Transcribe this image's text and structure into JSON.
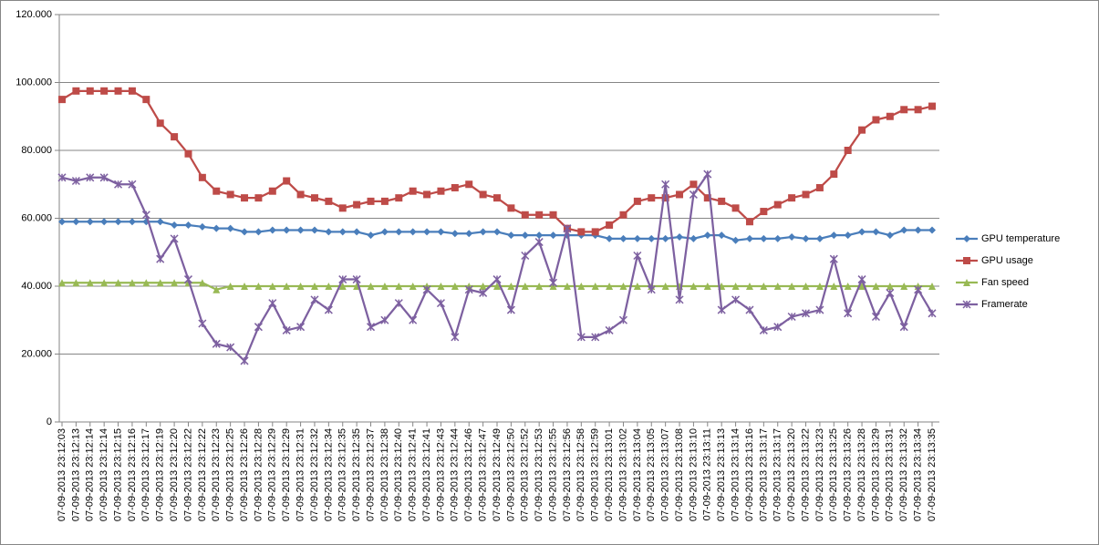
{
  "chart_data": {
    "type": "line",
    "categories": [
      "07-09-2013 23:12:03",
      "07-09-2013 23:12:13",
      "07-09-2013 23:12:14",
      "07-09-2013 23:12:14",
      "07-09-2013 23:12:15",
      "07-09-2013 23:12:16",
      "07-09-2013 23:12:17",
      "07-09-2013 23:12:19",
      "07-09-2013 23:12:20",
      "07-09-2013 23:12:22",
      "07-09-2013 23:12:22",
      "07-09-2013 23:12:23",
      "07-09-2013 23:12:25",
      "07-09-2013 23:12:26",
      "07-09-2013 23:12:28",
      "07-09-2013 23:12:29",
      "07-09-2013 23:12:29",
      "07-09-2013 23:12:31",
      "07-09-2013 23:12:32",
      "07-09-2013 23:12:34",
      "07-09-2013 23:12:35",
      "07-09-2013 23:12:35",
      "07-09-2013 23:12:37",
      "07-09-2013 23:12:38",
      "07-09-2013 23:12:40",
      "07-09-2013 23:12:41",
      "07-09-2013 23:12:41",
      "07-09-2013 23:12:43",
      "07-09-2013 23:12:44",
      "07-09-2013 23:12:46",
      "07-09-2013 23:12:47",
      "07-09-2013 23:12:49",
      "07-09-2013 23:12:50",
      "07-09-2013 23:12:52",
      "07-09-2013 23:12:53",
      "07-09-2013 23:12:55",
      "07-09-2013 23:12:56",
      "07-09-2013 23:12:58",
      "07-09-2013 23:12:59",
      "07-09-2013 23:13:01",
      "07-09-2013 23:13:02",
      "07-09-2013 23:13:04",
      "07-09-2013 23:13:05",
      "07-09-2013 23:13:07",
      "07-09-2013 23:13:08",
      "07-09-2013 23:13:10",
      "07-09-2013 23:13:11",
      "07-09-2013 23:13:13",
      "07-09-2013 23:13:14",
      "07-09-2013 23:13:16",
      "07-09-2013 23:13:17",
      "07-09-2013 23:13:17",
      "07-09-2013 23:13:20",
      "07-09-2013 23:13:22",
      "07-09-2013 23:13:23",
      "07-09-2013 23:13:25",
      "07-09-2013 23:13:26",
      "07-09-2013 23:13:28",
      "07-09-2013 23:13:29",
      "07-09-2013 23:13:31",
      "07-09-2013 23:13:32",
      "07-09-2013 23:13:34",
      "07-09-2013 23:13:35"
    ],
    "series": [
      {
        "name": "GPU temperature",
        "color": "#4a7ebb",
        "marker": "diamond",
        "values": [
          59,
          59,
          59,
          59,
          59,
          59,
          59,
          59,
          58,
          58,
          57.5,
          57,
          57,
          56,
          56,
          56.5,
          56.5,
          56.5,
          56.5,
          56,
          56,
          56,
          55,
          56,
          56,
          56,
          56,
          56,
          55.5,
          55.5,
          56,
          56,
          55,
          55,
          55,
          55,
          55,
          55,
          55,
          54,
          54,
          54,
          54,
          54,
          54.5,
          54,
          55,
          55,
          53.5,
          54,
          54,
          54,
          54.5,
          54,
          54,
          55,
          55,
          56,
          56,
          55,
          56.5,
          56.5,
          56.5
        ]
      },
      {
        "name": "GPU usage",
        "color": "#be4b48",
        "marker": "square",
        "values": [
          95,
          97.5,
          97.5,
          97.5,
          97.5,
          97.5,
          95,
          88,
          84,
          79,
          72,
          68,
          67,
          66,
          66,
          68,
          71,
          67,
          66,
          65,
          63,
          64,
          65,
          65,
          66,
          68,
          67,
          68,
          69,
          70,
          67,
          66,
          63,
          61,
          61,
          61,
          57,
          56,
          56,
          58,
          61,
          65,
          66,
          66,
          67,
          70,
          66,
          65,
          63,
          59,
          62,
          64,
          66,
          67,
          69,
          73,
          80,
          86,
          89,
          90,
          92,
          92,
          93
        ]
      },
      {
        "name": "Fan speed",
        "color": "#98b954",
        "marker": "triangle",
        "values": [
          41,
          41,
          41,
          41,
          41,
          41,
          41,
          41,
          41,
          41,
          41,
          39,
          40,
          40,
          40,
          40,
          40,
          40,
          40,
          40,
          40,
          40,
          40,
          40,
          40,
          40,
          40,
          40,
          40,
          40,
          40,
          40,
          40,
          40,
          40,
          40,
          40,
          40,
          40,
          40,
          40,
          40,
          40,
          40,
          40,
          40,
          40,
          40,
          40,
          40,
          40,
          40,
          40,
          40,
          40,
          40,
          40,
          40,
          40,
          40,
          40,
          40,
          40
        ]
      },
      {
        "name": "Framerate",
        "color": "#7d60a0",
        "marker": "x",
        "values": [
          72,
          71,
          72,
          72,
          70,
          70,
          61,
          48,
          54,
          42,
          29,
          23,
          22,
          18,
          28,
          35,
          27,
          28,
          36,
          33,
          42,
          42,
          28,
          30,
          35,
          30,
          39,
          35,
          25,
          39,
          38,
          42,
          33,
          49,
          53,
          41,
          57,
          25,
          25,
          27,
          30,
          49,
          39,
          70,
          36,
          67,
          73,
          33,
          36,
          33,
          27,
          28,
          31,
          32,
          33,
          48,
          32,
          42,
          31,
          38,
          28,
          39,
          32
        ]
      }
    ],
    "ylim": [
      0,
      120
    ],
    "yticks": [
      0,
      {
        "value": 20,
        "label": "20.000"
      },
      {
        "value": 40,
        "label": "40.000"
      },
      {
        "value": 60,
        "label": "60.000"
      },
      {
        "value": 80,
        "label": "80.000"
      },
      {
        "value": 100,
        "label": "100.000"
      },
      {
        "value": 120,
        "label": "120.000"
      }
    ],
    "grid": true,
    "legend": "right"
  }
}
